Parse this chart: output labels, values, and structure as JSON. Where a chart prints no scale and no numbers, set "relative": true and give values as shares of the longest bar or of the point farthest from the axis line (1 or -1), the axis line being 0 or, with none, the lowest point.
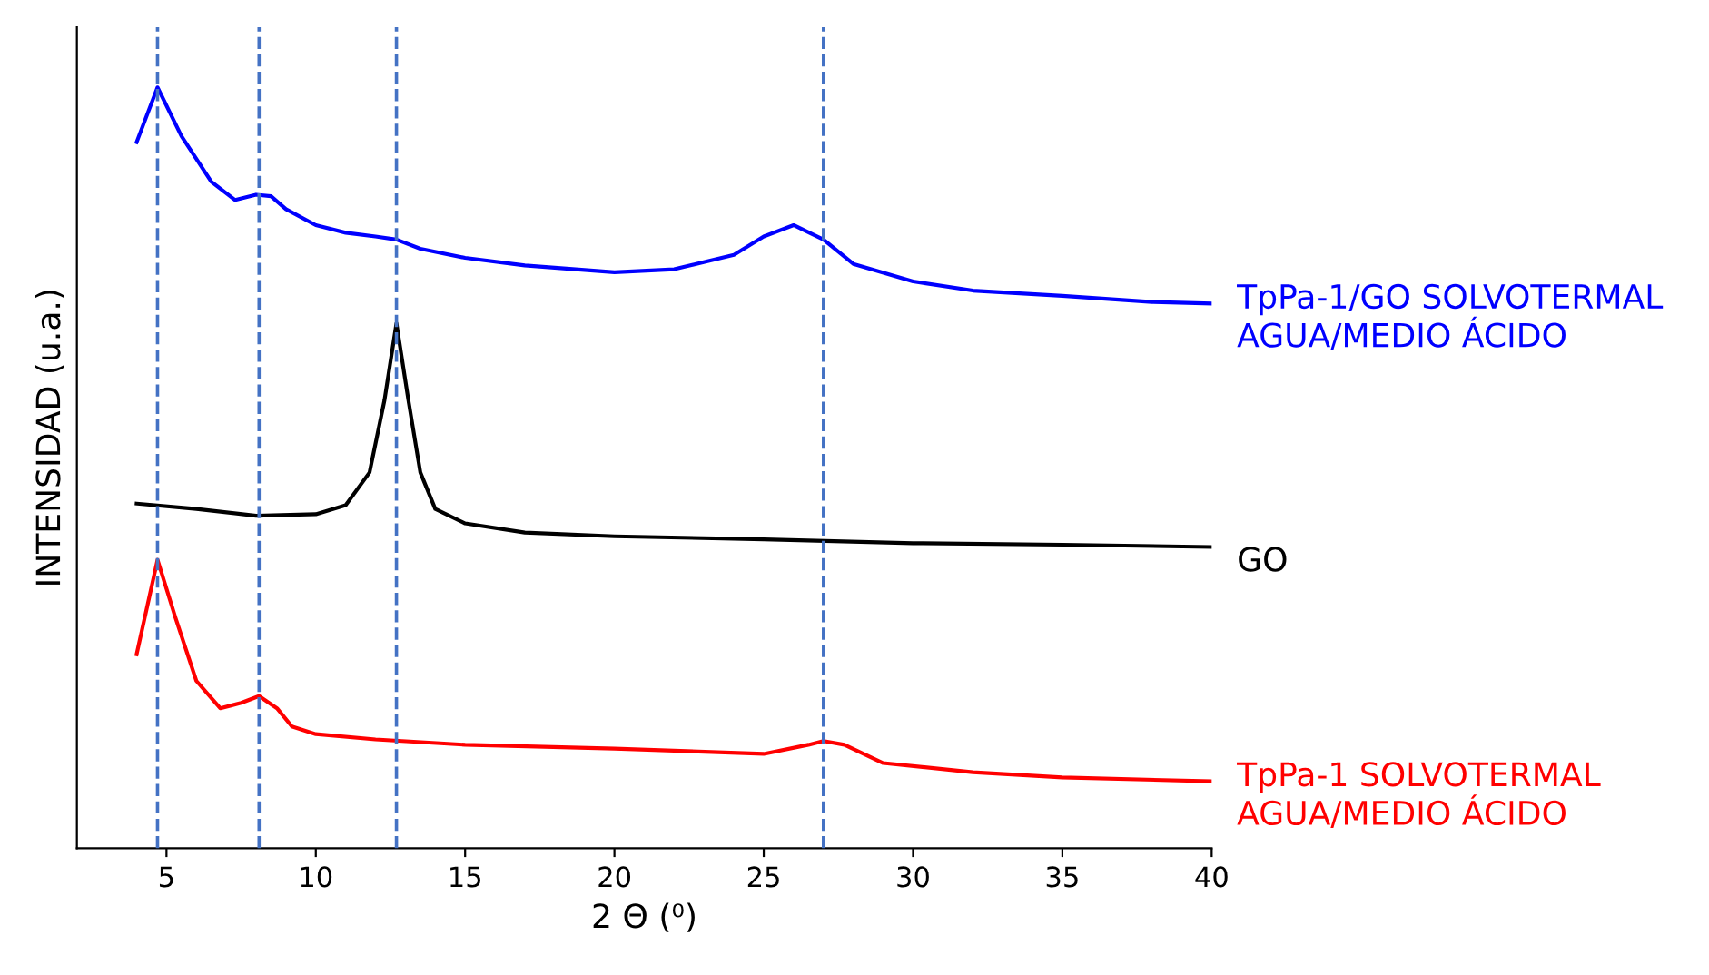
{
  "chart_data": {
    "type": "line",
    "relative": true,
    "xlabel": "2 Θ (⁰)",
    "ylabel": "INTENSIDAD (u.a.)",
    "xlim": [
      2,
      40
    ],
    "xticks": [
      5,
      10,
      15,
      20,
      25,
      30,
      35,
      40
    ],
    "legend": false,
    "grid": false,
    "tick_labels": "x",
    "line_style": "solid",
    "marker": "none",
    "series": [
      {
        "name": "TpPa-1/GO SOLVOTERMAL\nAGUA/MEDIO ÁCIDO",
        "color": "#0000ff",
        "x": [
          4,
          4.7,
          5.5,
          6.5,
          7.3,
          8,
          8.5,
          9,
          10,
          11,
          12,
          12.7,
          13.5,
          15,
          17,
          20,
          22,
          24,
          25,
          26,
          27,
          28,
          30,
          32,
          35,
          38,
          40
        ],
        "values": [
          0.928,
          1.0,
          0.936,
          0.876,
          0.852,
          0.859,
          0.857,
          0.84,
          0.819,
          0.809,
          0.804,
          0.8,
          0.788,
          0.776,
          0.766,
          0.757,
          0.761,
          0.78,
          0.804,
          0.819,
          0.8,
          0.768,
          0.745,
          0.733,
          0.726,
          0.718,
          0.716
        ]
      },
      {
        "name": "GO",
        "color": "#000000",
        "x": [
          4,
          6,
          8,
          10,
          11,
          11.8,
          12.3,
          12.7,
          13.1,
          13.5,
          14,
          15,
          17,
          20,
          25,
          30,
          35,
          40
        ],
        "values": [
          0.453,
          0.446,
          0.437,
          0.439,
          0.451,
          0.494,
          0.589,
          0.69,
          0.589,
          0.494,
          0.446,
          0.427,
          0.415,
          0.41,
          0.406,
          0.401,
          0.399,
          0.396
        ]
      },
      {
        "name": "TpPa-1 SOLVOTERMAL\nAGUA/MEDIO ÁCIDO",
        "color": "#ff0000",
        "x": [
          4,
          4.7,
          5.3,
          6,
          6.8,
          7.5,
          8.1,
          8.7,
          9.2,
          10,
          12,
          15,
          20,
          25,
          26.5,
          27,
          27.7,
          29,
          32,
          35,
          40
        ],
        "values": [
          0.255,
          0.379,
          0.303,
          0.22,
          0.184,
          0.191,
          0.2,
          0.184,
          0.16,
          0.15,
          0.143,
          0.136,
          0.131,
          0.124,
          0.136,
          0.141,
          0.136,
          0.112,
          0.1,
          0.093,
          0.088
        ]
      }
    ],
    "ref_lines": [
      {
        "axis": "x",
        "value": 4.7,
        "color": "#4472c4",
        "line_style": "dashed"
      },
      {
        "axis": "x",
        "value": 8.1,
        "color": "#4472c4",
        "line_style": "dashed"
      },
      {
        "axis": "x",
        "value": 12.7,
        "color": "#4472c4",
        "line_style": "dashed"
      },
      {
        "axis": "x",
        "value": 27.0,
        "color": "#4472c4",
        "line_style": "dashed"
      }
    ]
  }
}
